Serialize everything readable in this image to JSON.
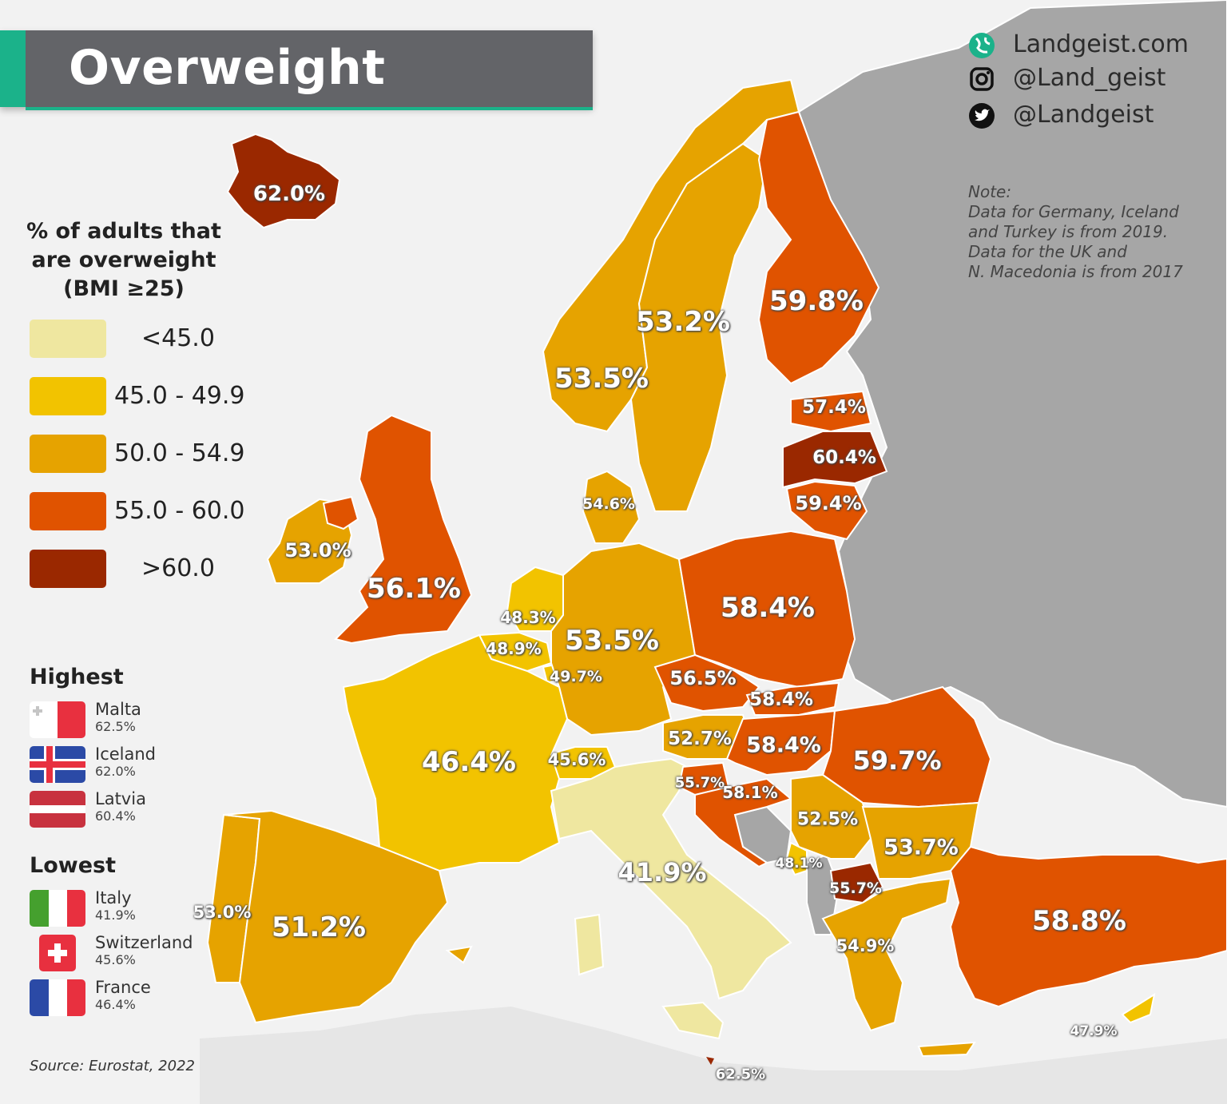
{
  "title": "Overweight",
  "brand": {
    "website": "Landgeist.com",
    "instagram": "@Land_geist",
    "twitter": "@Landgeist"
  },
  "note": {
    "heading": "Note:",
    "lines": [
      "Data for Germany, Iceland",
      "and Turkey is from 2019.",
      "Data for the UK and",
      "N. Macedonia is from 2017"
    ]
  },
  "legend": {
    "title_lines": [
      "% of adults that",
      "are overweight",
      "(BMI ≥25)"
    ],
    "items": [
      {
        "label": "<45.0",
        "color": "#efe7a0"
      },
      {
        "label": "45.0 - 49.9",
        "color": "#f2c300"
      },
      {
        "label": "50.0 - 54.9",
        "color": "#e6a300"
      },
      {
        "label": "55.0 - 60.0",
        "color": "#e05300"
      },
      {
        "label": ">60.0",
        "color": "#9a2800"
      }
    ]
  },
  "highest": {
    "title": "Highest",
    "items": [
      {
        "name": "Malta",
        "value": "62.5%",
        "flag": "malta-flag"
      },
      {
        "name": "Iceland",
        "value": "62.0%",
        "flag": "iceland-flag"
      },
      {
        "name": "Latvia",
        "value": "60.4%",
        "flag": "latvia-flag"
      }
    ]
  },
  "lowest": {
    "title": "Lowest",
    "items": [
      {
        "name": "Italy",
        "value": "41.9%",
        "flag": "italy-flag"
      },
      {
        "name": "Switzerland",
        "value": "45.6%",
        "flag": "switzerland-flag"
      },
      {
        "name": "France",
        "value": "46.4%",
        "flag": "france-flag"
      }
    ]
  },
  "source": "Source: Eurostat, 2022",
  "map_labels": [
    {
      "country": "iceland",
      "text": "62.0%",
      "value": 62.0
    },
    {
      "country": "finland",
      "text": "59.8%",
      "value": 59.8
    },
    {
      "country": "sweden",
      "text": "53.2%",
      "value": 53.2
    },
    {
      "country": "norway",
      "text": "53.5%",
      "value": 53.5
    },
    {
      "country": "estonia",
      "text": "57.4%",
      "value": 57.4
    },
    {
      "country": "latvia",
      "text": "60.4%",
      "value": 60.4
    },
    {
      "country": "lithuania",
      "text": "59.4%",
      "value": 59.4
    },
    {
      "country": "denmark",
      "text": "54.6%",
      "value": 54.6
    },
    {
      "country": "ireland",
      "text": "53.0%",
      "value": 53.0
    },
    {
      "country": "united-kingdom",
      "text": "56.1%",
      "value": 56.1
    },
    {
      "country": "netherlands",
      "text": "48.3%",
      "value": 48.3
    },
    {
      "country": "belgium",
      "text": "48.9%",
      "value": 48.9
    },
    {
      "country": "luxembourg",
      "text": "49.7%",
      "value": 49.7
    },
    {
      "country": "germany",
      "text": "53.5%",
      "value": 53.5
    },
    {
      "country": "poland",
      "text": "58.4%",
      "value": 58.4
    },
    {
      "country": "czechia",
      "text": "56.5%",
      "value": 56.5
    },
    {
      "country": "slovakia",
      "text": "58.4%",
      "value": 58.4
    },
    {
      "country": "hungary",
      "text": "58.4%",
      "value": 58.4
    },
    {
      "country": "austria",
      "text": "52.7%",
      "value": 52.7
    },
    {
      "country": "romania",
      "text": "59.7%",
      "value": 59.7
    },
    {
      "country": "france",
      "text": "46.4%",
      "value": 46.4
    },
    {
      "country": "switzerland",
      "text": "45.6%",
      "value": 45.6
    },
    {
      "country": "slovenia",
      "text": "55.7%",
      "value": 55.7
    },
    {
      "country": "croatia",
      "text": "58.1%",
      "value": 58.1
    },
    {
      "country": "serbia",
      "text": "52.5%",
      "value": 52.5
    },
    {
      "country": "bulgaria",
      "text": "53.7%",
      "value": 53.7
    },
    {
      "country": "montenegro",
      "text": "48.1%",
      "value": 48.1
    },
    {
      "country": "north-macedonia",
      "text": "55.7%",
      "value": 55.7
    },
    {
      "country": "italy",
      "text": "41.9%",
      "value": 41.9
    },
    {
      "country": "portugal",
      "text": "53.0%",
      "value": 53.0
    },
    {
      "country": "spain",
      "text": "51.2%",
      "value": 51.2
    },
    {
      "country": "greece",
      "text": "54.9%",
      "value": 54.9
    },
    {
      "country": "turkey",
      "text": "58.8%",
      "value": 58.8
    },
    {
      "country": "cyprus",
      "text": "47.9%",
      "value": 47.9
    },
    {
      "country": "malta",
      "text": "62.5%",
      "value": 62.5
    }
  ],
  "colors": {
    "background": "#f2f2f2",
    "no_data": "#a6a6a6",
    "accent": "#1bb28a",
    "title_bar": "#636468"
  }
}
